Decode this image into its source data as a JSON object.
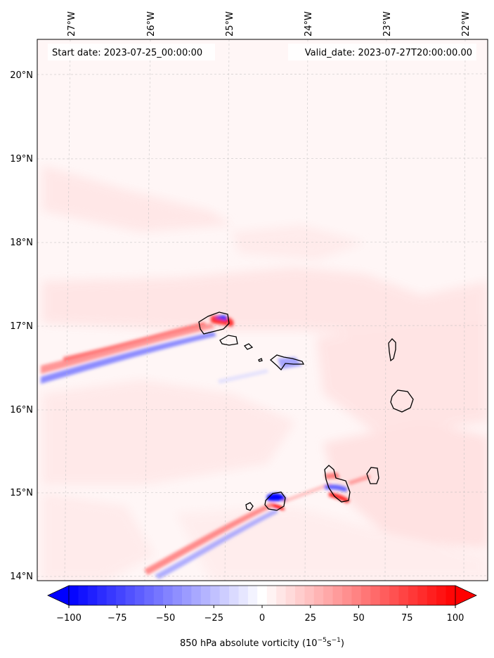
{
  "map": {
    "start_label": "Start date: 2023-07-25_00:00:00",
    "valid_label": "Valid_date: 2023-07-27T20:00:00.00",
    "lon_ticks": [
      "27°W",
      "26°W",
      "25°W",
      "24°W",
      "23°W",
      "22°W"
    ],
    "lat_ticks": [
      "20°N",
      "19°N",
      "18°N",
      "17°N",
      "16°N",
      "15°N",
      "14°N"
    ],
    "field": "850 hPa absolute vorticity",
    "colormap": "bwr",
    "colors": {
      "negative": "#0000ff",
      "zero": "#ffffff",
      "positive": "#ff0000",
      "coastline": "#000000",
      "grid": "#bbbbbb"
    }
  },
  "colorbar": {
    "tick_labels": [
      "−100",
      "−75",
      "−50",
      "−25",
      "0",
      "25",
      "50",
      "75",
      "100"
    ],
    "label_main": "850 hPa absolute vorticity (10",
    "label_exp1": "−5",
    "label_mid": "s",
    "label_exp2": "−1",
    "label_end": ")",
    "min": -100,
    "max": 100,
    "levels": 41,
    "extend": "both"
  }
}
